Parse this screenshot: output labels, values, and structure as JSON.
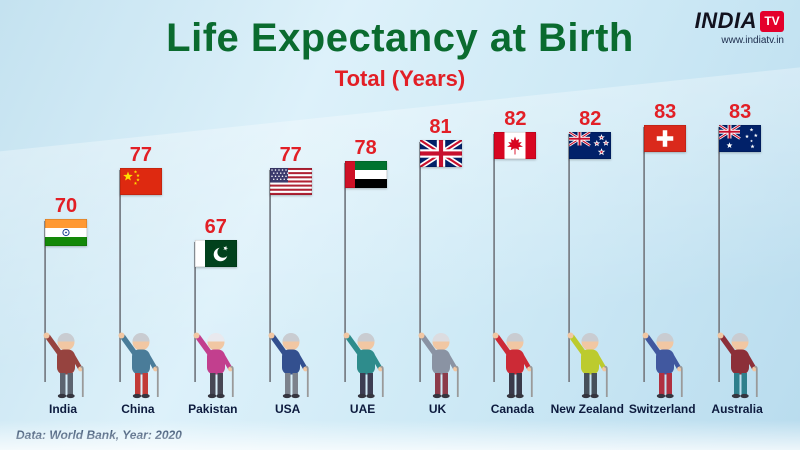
{
  "logo": {
    "brand": "INDIA",
    "tv": "TV",
    "website": "www.indiatv.in",
    "tv_box_color": "#e4002b"
  },
  "header": {
    "title": "Life Expectancy at Birth",
    "subtitle": "Total (Years)",
    "title_color": "#0a6b2f",
    "subtitle_color": "#e21f26"
  },
  "footer": {
    "source": "Data: World Bank, Year: 2020"
  },
  "chart_data": {
    "type": "bar",
    "title": "Life Expectancy at Birth",
    "subtitle": "Total (Years)",
    "unit": "years",
    "source": "Data: World Bank, Year: 2020",
    "categories": [
      "India",
      "China",
      "Pakistan",
      "USA",
      "UAE",
      "UK",
      "Canada",
      "New Zealand",
      "Switzerland",
      "Australia"
    ],
    "values": [
      70,
      77,
      67,
      77,
      78,
      81,
      82,
      82,
      83,
      83
    ],
    "ylim": [
      60,
      90
    ],
    "legend": "none",
    "grid": "off",
    "value_color": "#e21f26",
    "bar_style": "flag-on-pole-held-by-elderly-figure",
    "flags": [
      "india",
      "china",
      "pakistan",
      "usa",
      "uae",
      "uk",
      "canada",
      "new-zealand",
      "switzerland",
      "australia"
    ],
    "figures": [
      {
        "shirt": "#96433f",
        "pants": "#5c6470",
        "hair": "#c9ccd1"
      },
      {
        "shirt": "#4a7c99",
        "pants": "#c23b37",
        "hair": "#c9ccd1"
      },
      {
        "shirt": "#c23f8e",
        "pants": "#474754",
        "hair": "#e9e9ee"
      },
      {
        "shirt": "#33508f",
        "pants": "#7c828c",
        "hair": "#c9ccd1"
      },
      {
        "shirt": "#2e8c8c",
        "pants": "#3d3d52",
        "hair": "#c9ccd1"
      },
      {
        "shirt": "#8a93a3",
        "pants": "#8c3b4a",
        "hair": "#dcdce0"
      },
      {
        "shirt": "#cc2a36",
        "pants": "#3a3a4a",
        "hair": "#c9ccd1"
      },
      {
        "shirt": "#bccb2e",
        "pants": "#46505a",
        "hair": "#c9ccd1"
      },
      {
        "shirt": "#41589f",
        "pants": "#b03040",
        "hair": "#c9ccd1"
      },
      {
        "shirt": "#8c2f39",
        "pants": "#2e7f8c",
        "hair": "#c9ccd1"
      }
    ]
  }
}
